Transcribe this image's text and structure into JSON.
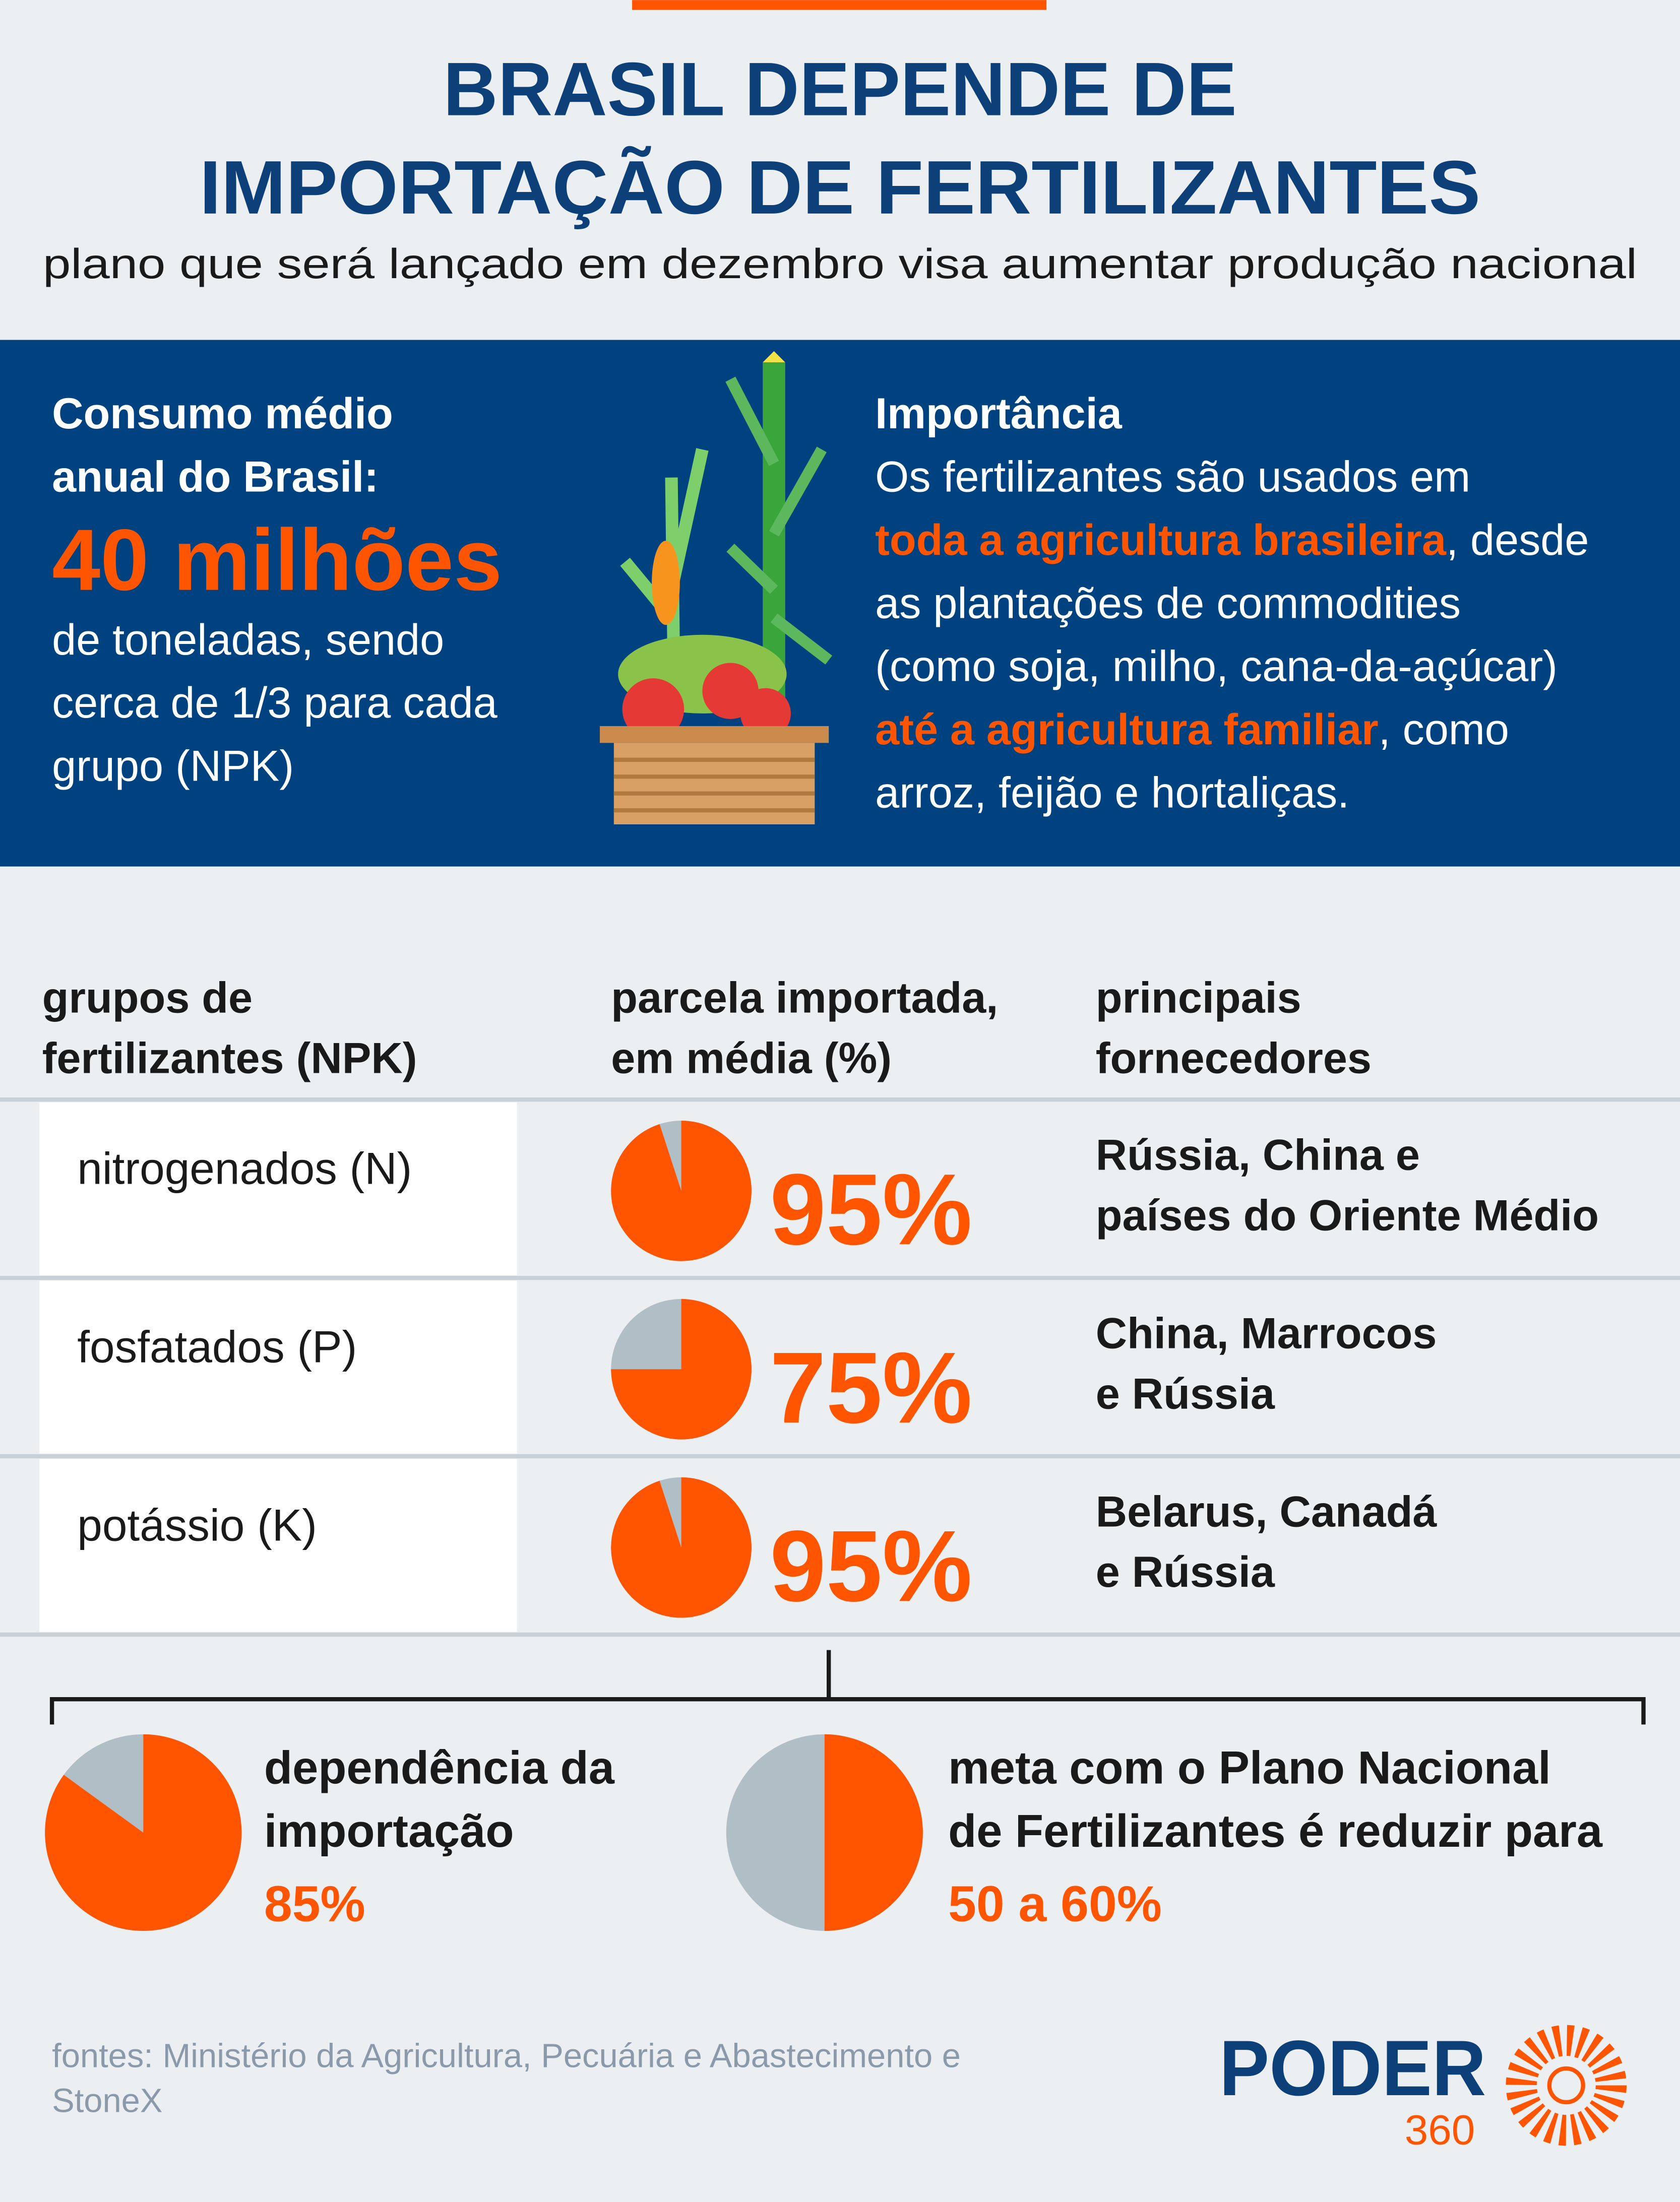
{
  "header": {
    "title_lines": [
      "BRASIL DEPENDE DE",
      "IMPORTAÇÃO DE FERTILIZANTES"
    ],
    "subtitle": "plano que será lançado em dezembro visa aumentar produção nacional"
  },
  "consumption": {
    "label_lines": [
      "Consumo médio",
      "anual do Brasil:"
    ],
    "amount": "40 milhões",
    "detail_lines": [
      "de toneladas, sendo",
      "cerca de 1/3 para cada",
      "grupo (NPK)"
    ]
  },
  "importance": {
    "title": "Importância",
    "lines": [
      [
        {
          "text": "Os fertilizantes são usados em"
        }
      ],
      [
        {
          "text": "toda a agricultura brasileira",
          "emphasis": true
        },
        {
          "text": ", desde"
        }
      ],
      [
        {
          "text": "as plantações de commodities"
        }
      ],
      [
        {
          "text": "(como soja, milho, cana-da-açúcar)"
        }
      ],
      [
        {
          "text": "até a agricultura familiar",
          "emphasis": true
        },
        {
          "text": ", como"
        }
      ],
      [
        {
          "text": "arroz, feijão e hortaliças."
        }
      ]
    ]
  },
  "table": {
    "columns": [
      [
        "grupos de",
        "fertilizantes (NPK)"
      ],
      [
        "parcela importada,",
        "em média (%)"
      ],
      [
        "principais",
        "fornecedores"
      ]
    ],
    "rows": [
      {
        "group": "nitrogenados (N)",
        "share": 95,
        "share_label": "95%",
        "suppliers": [
          "Rússia, China e",
          "países do Oriente Médio"
        ]
      },
      {
        "group": "fosfatados (P)",
        "share": 75,
        "share_label": "75%",
        "suppliers": [
          "China, Marrocos",
          "e Rússia"
        ]
      },
      {
        "group": "potássio (K)",
        "share": 95,
        "share_label": "95%",
        "suppliers": [
          "Belarus, Canadá",
          "e Rússia"
        ]
      }
    ]
  },
  "summary": {
    "dependence": {
      "lines": [
        "dependência da",
        "importação"
      ],
      "value": 85,
      "value_label": "85%"
    },
    "target": {
      "lines": [
        "meta com o Plano Nacional",
        "de Fertilizantes é reduzir para"
      ],
      "range": [
        50,
        60
      ],
      "value_label": "50 a 60%"
    }
  },
  "footer": {
    "source_lines": [
      "fontes: Ministério da Agricultura, Pecuária e Abastecimento e",
      "StoneX"
    ],
    "logo": "PODER",
    "logo_sub": "360"
  }
}
